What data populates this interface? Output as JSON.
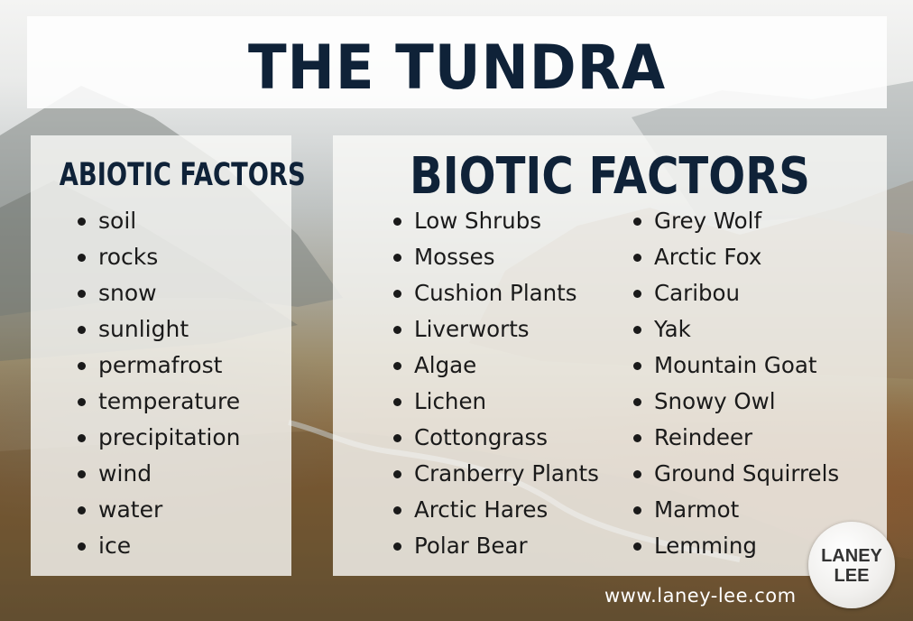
{
  "title": "THE TUNDRA",
  "abiotic": {
    "heading": "ABIOTIC FACTORS",
    "items": [
      "soil",
      "rocks",
      "snow",
      "sunlight",
      "permafrost",
      "temperature",
      "precipitation",
      "wind",
      "water",
      "ice"
    ]
  },
  "biotic": {
    "heading": "BIOTIC FACTORS",
    "column1": [
      "Low Shrubs",
      "Mosses",
      "Cushion Plants",
      "Liverworts",
      "Algae",
      "Lichen",
      "Cottongrass",
      "Cranberry Plants",
      "Arctic Hares",
      "Polar Bear"
    ],
    "column2": [
      "Grey Wolf",
      "Arctic Fox",
      "Caribou",
      "Yak",
      "Mountain Goat",
      "Snowy Owl",
      "Reindeer",
      "Ground Squirrels",
      "Marmot",
      "Lemming"
    ]
  },
  "footer": {
    "website": "www.laney-lee.com",
    "logo_line1": "LANEY",
    "logo_line2": "LEE"
  },
  "colors": {
    "heading": "#0f2238",
    "panel": "#fafaf8",
    "text": "#1a1a1a"
  }
}
